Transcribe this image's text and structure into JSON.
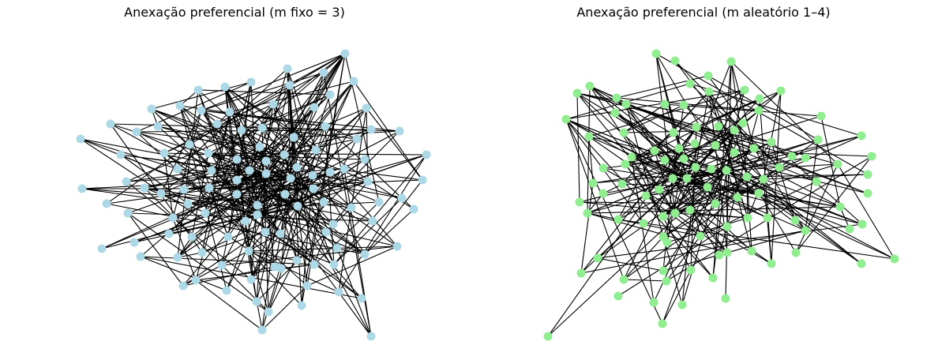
{
  "panels": [
    {
      "title": "Anexação preferencial (m fixo = 3)",
      "node_color": "#add8e6",
      "node_count": 100
    },
    {
      "title": "Anexação preferencial (m aleatório 1–4)",
      "node_color": "#90ee90",
      "node_count": 100
    }
  ]
}
